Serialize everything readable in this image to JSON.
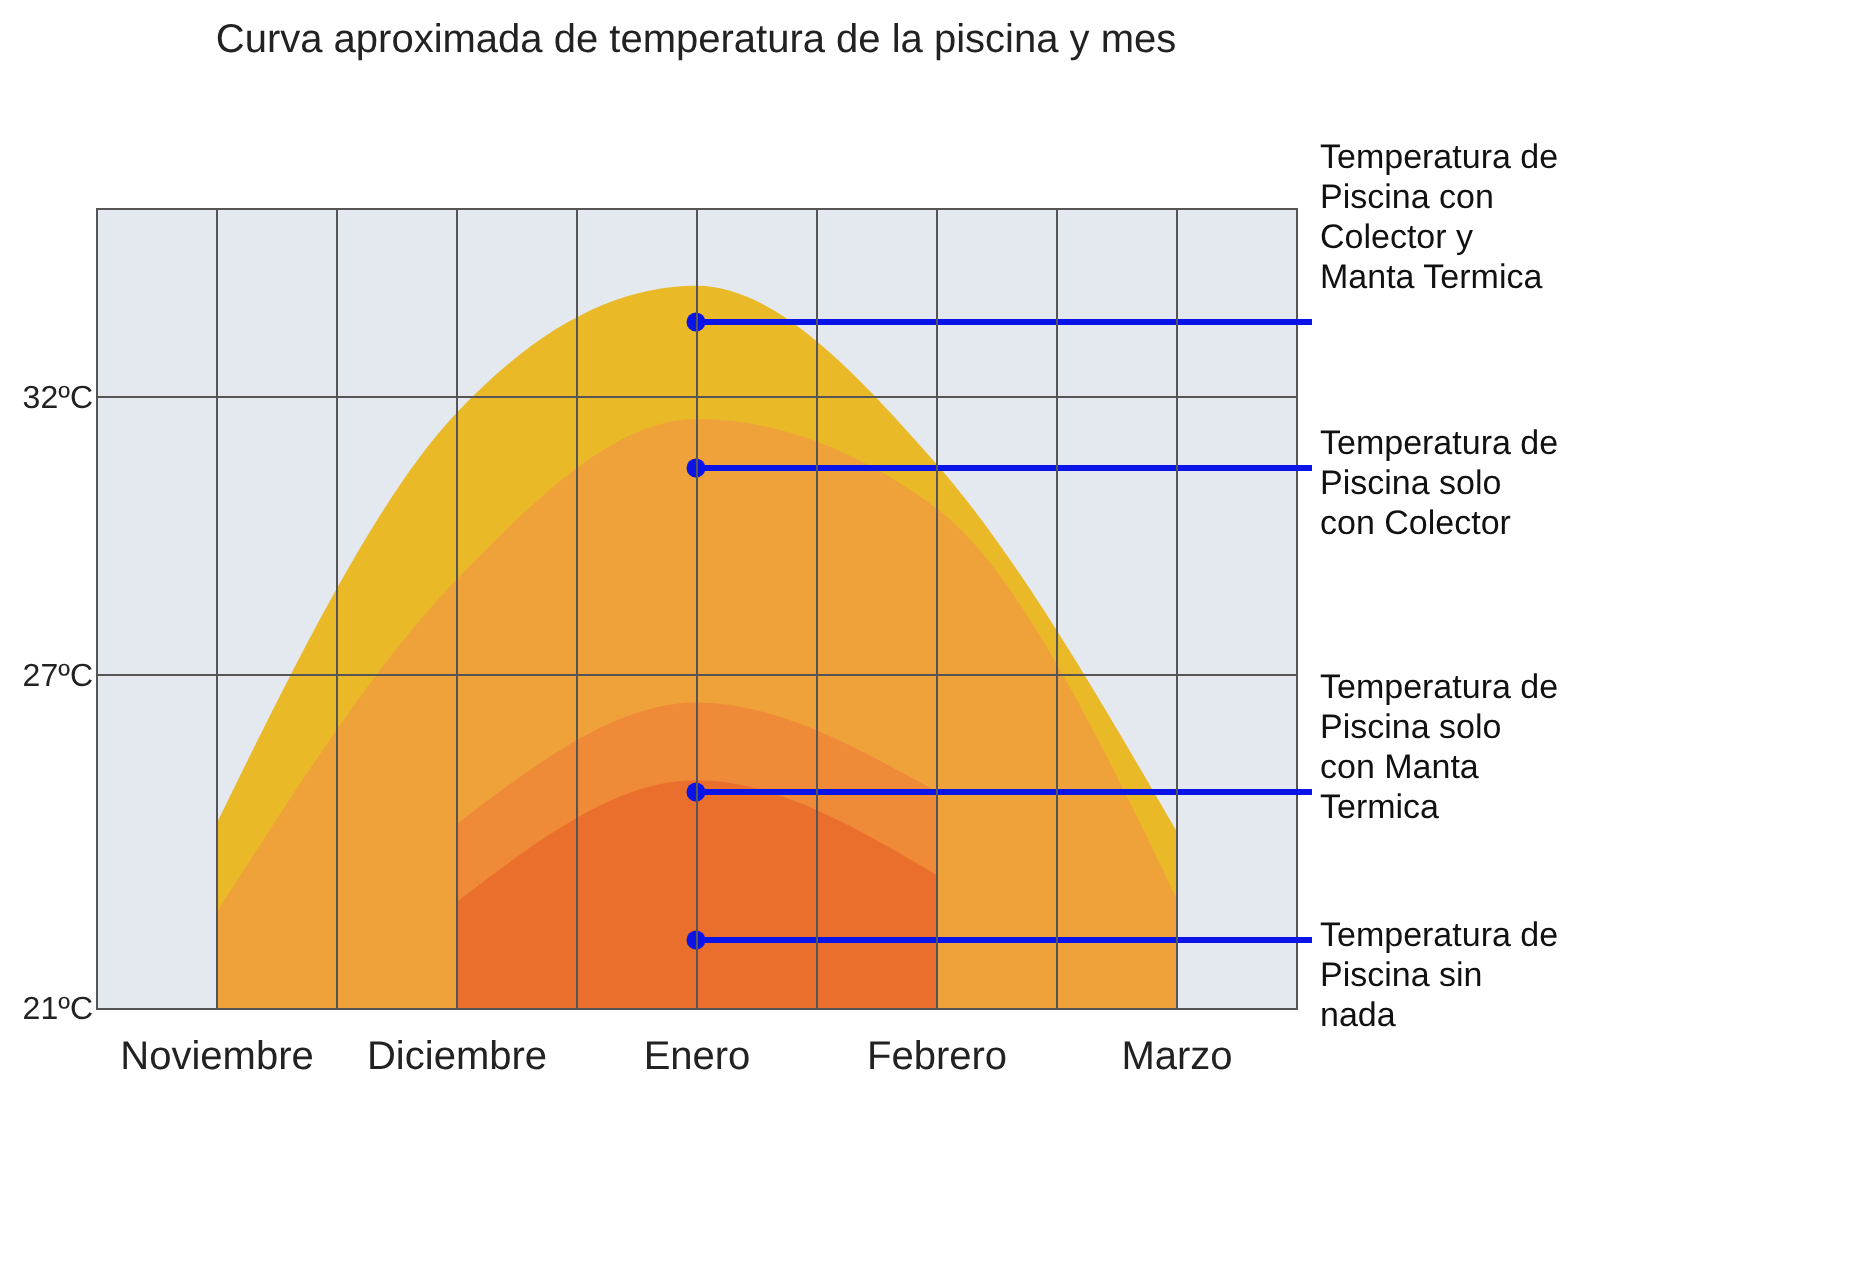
{
  "chart_data": {
    "type": "area",
    "title": "Curva aproximada de temperatura de la piscina y mes",
    "categories": [
      "Noviembre",
      "Diciembre",
      "Enero",
      "Febrero",
      "Marzo"
    ],
    "ylim": [
      21,
      35.4
    ],
    "yticks": [
      {
        "value": 21,
        "label": "21ºC"
      },
      {
        "value": 27,
        "label": "27ºC"
      },
      {
        "value": 32,
        "label": "32ºC"
      }
    ],
    "grid": true,
    "legend": false,
    "series": [
      {
        "name": "Temperatura de Piscina con Colector y Manta Termica",
        "color": "#e9b927",
        "values": [
          24.3,
          31.7,
          34.0,
          30.8,
          24.2
        ]
      },
      {
        "name": "Temperatura de Piscina solo con Colector",
        "color": "#f0a23a",
        "values": [
          22.7,
          28.7,
          31.6,
          30.0,
          23.0
        ]
      },
      {
        "name": "Temperatura de Piscina solo con Manta Termica",
        "color": "#ee8a38",
        "values": [
          null,
          24.3,
          26.5,
          24.9,
          null
        ]
      },
      {
        "name": "Temperatura de Piscina sin nada",
        "color": "#ea6e2c",
        "values": [
          null,
          22.9,
          25.1,
          23.4,
          null
        ]
      }
    ]
  }
}
